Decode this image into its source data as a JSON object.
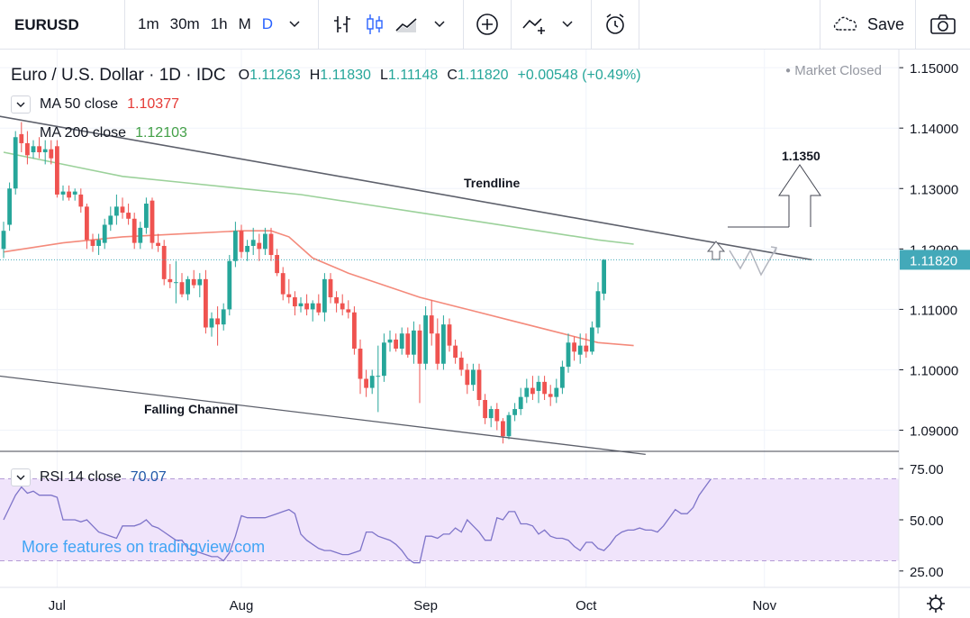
{
  "toolbar": {
    "symbol": "EURUSD",
    "intervals": [
      "1m",
      "30m",
      "1h",
      "M",
      "D"
    ],
    "active_interval": "D",
    "save_label": "Save"
  },
  "header": {
    "title": "Euro / U.S. Dollar · 1D · IDC",
    "ohlc": {
      "o_label": "O",
      "o": "1.11263",
      "h_label": "H",
      "h": "1.11830",
      "l_label": "L",
      "l": "1.11148",
      "c_label": "C",
      "c": "1.11820",
      "change": "+0.00548 (+0.49%)"
    },
    "status": "Market Closed",
    "ma50": {
      "label": "MA  50 close",
      "value": "1.10377"
    },
    "ma200": {
      "label": "MA  200 close",
      "value": "1.12103"
    },
    "rsi": {
      "label": "RSI  14 close",
      "value": "70.07"
    }
  },
  "watermark": "More features on tradingview.com",
  "colors": {
    "up": "#26a69a",
    "down": "#ef5350",
    "ma50": "#f48a7b",
    "ma200": "#9bd19a",
    "rsi": "#7e74c9",
    "rsi_band": "#f0e4fb",
    "accent": "#2962ff",
    "price_tag": "#43a9b9"
  },
  "chart_data": {
    "type": "candlestick",
    "symbol": "EURUSD",
    "timeframe": "1D",
    "price_axis": {
      "ticks": [
        "1.15000",
        "1.14000",
        "1.13000",
        "1.12000",
        "1.11000",
        "1.10000",
        "1.09000"
      ],
      "ylim": [
        1.0865,
        1.153
      ]
    },
    "time_axis": {
      "labels": [
        "Jul",
        "Aug",
        "Sep",
        "Oct",
        "Nov"
      ],
      "label_index": [
        9,
        40,
        71,
        98,
        128
      ]
    },
    "last_price": "1.11820",
    "candles": [
      [
        1.12,
        1.1245,
        1.1185,
        1.123
      ],
      [
        1.124,
        1.131,
        1.123,
        1.13
      ],
      [
        1.13,
        1.1395,
        1.129,
        1.1385
      ],
      [
        1.139,
        1.141,
        1.136,
        1.1375
      ],
      [
        1.1375,
        1.1395,
        1.134,
        1.1355
      ],
      [
        1.136,
        1.138,
        1.135,
        1.137
      ],
      [
        1.137,
        1.1385,
        1.135,
        1.136
      ],
      [
        1.136,
        1.138,
        1.134,
        1.1365
      ],
      [
        1.1365,
        1.138,
        1.134,
        1.135
      ],
      [
        1.137,
        1.138,
        1.1285,
        1.129
      ],
      [
        1.129,
        1.1305,
        1.128,
        1.1295
      ],
      [
        1.1295,
        1.1305,
        1.128,
        1.1285
      ],
      [
        1.129,
        1.13,
        1.128,
        1.1295
      ],
      [
        1.129,
        1.13,
        1.126,
        1.127
      ],
      [
        1.127,
        1.1275,
        1.12,
        1.1215
      ],
      [
        1.1215,
        1.1225,
        1.1195,
        1.1205
      ],
      [
        1.1205,
        1.1225,
        1.119,
        1.1215
      ],
      [
        1.121,
        1.125,
        1.12,
        1.124
      ],
      [
        1.124,
        1.127,
        1.123,
        1.1255
      ],
      [
        1.1255,
        1.129,
        1.124,
        1.127
      ],
      [
        1.127,
        1.1285,
        1.125,
        1.126
      ],
      [
        1.126,
        1.1275,
        1.124,
        1.125
      ],
      [
        1.125,
        1.126,
        1.12,
        1.121
      ],
      [
        1.121,
        1.1245,
        1.12,
        1.1235
      ],
      [
        1.1235,
        1.1285,
        1.1225,
        1.1275
      ],
      [
        1.128,
        1.1285,
        1.12,
        1.121
      ],
      [
        1.121,
        1.1225,
        1.1195,
        1.1205
      ],
      [
        1.1205,
        1.1215,
        1.114,
        1.115
      ],
      [
        1.115,
        1.1175,
        1.1135,
        1.1145
      ],
      [
        1.1145,
        1.118,
        1.111,
        1.1145
      ],
      [
        1.1145,
        1.116,
        1.112,
        1.1125
      ],
      [
        1.1125,
        1.1155,
        1.1115,
        1.115
      ],
      [
        1.115,
        1.1165,
        1.1135,
        1.114
      ],
      [
        1.114,
        1.116,
        1.112,
        1.115
      ],
      [
        1.115,
        1.1165,
        1.106,
        1.107
      ],
      [
        1.107,
        1.1095,
        1.1055,
        1.1085
      ],
      [
        1.1085,
        1.1105,
        1.104,
        1.1075
      ],
      [
        1.1075,
        1.111,
        1.1065,
        1.11
      ],
      [
        1.11,
        1.119,
        1.109,
        1.118
      ],
      [
        1.118,
        1.1245,
        1.117,
        1.123
      ],
      [
        1.123,
        1.124,
        1.1185,
        1.1195
      ],
      [
        1.1195,
        1.1215,
        1.118,
        1.1205
      ],
      [
        1.1205,
        1.1235,
        1.119,
        1.1215
      ],
      [
        1.121,
        1.1225,
        1.118,
        1.12
      ],
      [
        1.12,
        1.1235,
        1.119,
        1.1225
      ],
      [
        1.1225,
        1.1235,
        1.118,
        1.119
      ],
      [
        1.119,
        1.12,
        1.1155,
        1.116
      ],
      [
        1.116,
        1.117,
        1.1115,
        1.1125
      ],
      [
        1.1125,
        1.115,
        1.111,
        1.112
      ],
      [
        1.112,
        1.113,
        1.109,
        1.1105
      ],
      [
        1.1105,
        1.112,
        1.1095,
        1.111
      ],
      [
        1.111,
        1.1125,
        1.109,
        1.11
      ],
      [
        1.11,
        1.1115,
        1.108,
        1.111
      ],
      [
        1.111,
        1.1125,
        1.109,
        1.1095
      ],
      [
        1.1095,
        1.116,
        1.108,
        1.115
      ],
      [
        1.115,
        1.116,
        1.111,
        1.112
      ],
      [
        1.112,
        1.113,
        1.1095,
        1.111
      ],
      [
        1.111,
        1.1125,
        1.109,
        1.11
      ],
      [
        1.11,
        1.1115,
        1.1085,
        1.1095
      ],
      [
        1.1095,
        1.1105,
        1.1025,
        1.1035
      ],
      [
        1.1035,
        1.105,
        1.096,
        1.0985
      ],
      [
        1.0985,
        1.1,
        1.0955,
        1.097
      ],
      [
        1.097,
        1.1,
        1.096,
        1.099
      ],
      [
        1.099,
        1.104,
        1.093,
        1.099
      ],
      [
        1.099,
        1.106,
        1.098,
        1.1045
      ],
      [
        1.1045,
        1.1065,
        1.103,
        1.105
      ],
      [
        1.105,
        1.106,
        1.103,
        1.1035
      ],
      [
        1.1035,
        1.107,
        1.1025,
        1.106
      ],
      [
        1.106,
        1.107,
        1.102,
        1.1025
      ],
      [
        1.1025,
        1.108,
        1.101,
        1.1065
      ],
      [
        1.1065,
        1.1075,
        1.0945,
        1.101
      ],
      [
        1.101,
        1.1105,
        1.1,
        1.109
      ],
      [
        1.109,
        1.1115,
        1.104,
        1.106
      ],
      [
        1.106,
        1.1085,
        1.1,
        1.101
      ],
      [
        1.101,
        1.109,
        1.1,
        1.1075
      ],
      [
        1.1075,
        1.1085,
        1.103,
        1.104
      ],
      [
        1.104,
        1.105,
        1.101,
        1.102
      ],
      [
        1.102,
        1.103,
        1.099,
        1.1
      ],
      [
        1.1,
        1.101,
        1.096,
        1.0975
      ],
      [
        1.0975,
        1.101,
        1.0965,
        1.1
      ],
      [
        1.1,
        1.101,
        1.094,
        1.095
      ],
      [
        1.095,
        1.096,
        1.091,
        1.092
      ],
      [
        1.092,
        1.094,
        1.0905,
        1.0935
      ],
      [
        1.0935,
        1.0945,
        1.09,
        1.0915
      ],
      [
        1.0915,
        1.092,
        1.0878,
        1.089
      ],
      [
        1.089,
        1.093,
        1.0885,
        1.0925
      ],
      [
        1.0925,
        1.0945,
        1.0915,
        1.0935
      ],
      [
        1.0935,
        1.097,
        1.0925,
        1.0955
      ],
      [
        1.0955,
        1.0985,
        1.0945,
        1.097
      ],
      [
        1.097,
        1.099,
        1.095,
        1.096
      ],
      [
        1.0965,
        1.099,
        1.0945,
        1.098
      ],
      [
        1.098,
        1.099,
        1.095,
        1.096
      ],
      [
        1.096,
        1.0975,
        1.094,
        1.0955
      ],
      [
        1.0955,
        1.0985,
        1.0945,
        1.097
      ],
      [
        1.097,
        1.1015,
        1.096,
        1.1005
      ],
      [
        1.1005,
        1.106,
        1.0995,
        1.1045
      ],
      [
        1.1045,
        1.1055,
        1.1015,
        1.103
      ],
      [
        1.1025,
        1.106,
        1.101,
        1.104
      ],
      [
        1.104,
        1.106,
        1.102,
        1.103
      ],
      [
        1.103,
        1.108,
        1.1025,
        1.107
      ],
      [
        1.107,
        1.1145,
        1.106,
        1.113
      ],
      [
        1.1126,
        1.1183,
        1.1115,
        1.1182
      ]
    ],
    "moving_averages": [
      {
        "name": "MA 50 close",
        "value_label": "1.10377",
        "points": [
          [
            0,
            1.1195
          ],
          [
            10,
            1.121
          ],
          [
            20,
            1.122
          ],
          [
            30,
            1.1225
          ],
          [
            40,
            1.123
          ],
          [
            45,
            1.123
          ],
          [
            48,
            1.122
          ],
          [
            52,
            1.1185
          ],
          [
            58,
            1.116
          ],
          [
            64,
            1.114
          ],
          [
            70,
            1.112
          ],
          [
            78,
            1.11
          ],
          [
            86,
            1.108
          ],
          [
            94,
            1.106
          ],
          [
            100,
            1.1045
          ],
          [
            106,
            1.104
          ]
        ]
      },
      {
        "name": "MA 200 close",
        "value_label": "1.12103",
        "points": [
          [
            0,
            1.136
          ],
          [
            10,
            1.134
          ],
          [
            20,
            1.132
          ],
          [
            30,
            1.131
          ],
          [
            40,
            1.13
          ],
          [
            50,
            1.129
          ],
          [
            60,
            1.1275
          ],
          [
            70,
            1.126
          ],
          [
            80,
            1.1245
          ],
          [
            90,
            1.123
          ],
          [
            100,
            1.1215
          ],
          [
            106,
            1.1208
          ]
        ]
      }
    ],
    "annotations": [
      {
        "type": "text",
        "text": "Trendline"
      },
      {
        "type": "text",
        "text": "Falling Channel"
      },
      {
        "type": "target",
        "text": "1.1350",
        "price": 1.135
      }
    ],
    "trendline": {
      "from": [
        -1,
        1.142
      ],
      "to": [
        136,
        1.1182
      ]
    },
    "channel_lower": {
      "from": [
        -1,
        1.099
      ],
      "to": [
        108,
        1.086
      ]
    },
    "rsi": {
      "period": 14,
      "ticks": [
        "75.00",
        "50.00",
        "25.00"
      ],
      "ylim": [
        17,
        83
      ],
      "band": [
        30,
        70
      ],
      "values": [
        50,
        56,
        62,
        66,
        63,
        64,
        62,
        62,
        62,
        61,
        50,
        50,
        50,
        49,
        50,
        47,
        44,
        43,
        42,
        41,
        47,
        47,
        47,
        48,
        50,
        47,
        46,
        44,
        42,
        40,
        40,
        36,
        35,
        34,
        33,
        32,
        32,
        30,
        34,
        42,
        52,
        51,
        51,
        51,
        51,
        52,
        53,
        54,
        55,
        53,
        43,
        40,
        38,
        36,
        35,
        35,
        34,
        33,
        33,
        34,
        35,
        44,
        44,
        42,
        41,
        40,
        38,
        35,
        31,
        29,
        29,
        42,
        42,
        41,
        43,
        43,
        46,
        44,
        50,
        47,
        44,
        40,
        40,
        51,
        50,
        54,
        54,
        48,
        48,
        47,
        43,
        45,
        42,
        41,
        41,
        40,
        37,
        35,
        39,
        39,
        36,
        35,
        38,
        42,
        44,
        45,
        45,
        46,
        45,
        45,
        44,
        47,
        51,
        55,
        53,
        53,
        56,
        62,
        66,
        70
      ]
    }
  }
}
